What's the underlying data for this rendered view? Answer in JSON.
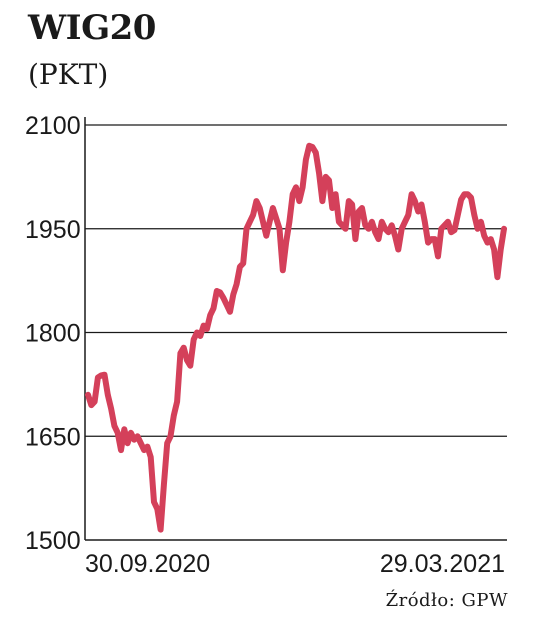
{
  "header": {
    "title": "WIG20",
    "unit": "(PKT)"
  },
  "source": "Źródło: GPW",
  "colors": {
    "line": "#d4405a",
    "grid": "#1a1a1a",
    "text": "#1a1a1a"
  },
  "chart_data": {
    "type": "line",
    "title": "WIG20",
    "subtitle": "(PKT)",
    "xlabel": "",
    "ylabel": "",
    "ylim": [
      1500,
      2100
    ],
    "yticks": [
      1500,
      1650,
      1800,
      1950,
      2100
    ],
    "ytick_labels": [
      "1500",
      "1650",
      "1800",
      "1950",
      "2100"
    ],
    "xtick_labels": [
      "30.09.2020",
      "29.03.2021"
    ],
    "grid": true,
    "series": [
      {
        "values": [
          1710,
          1695,
          1700,
          1735,
          1738,
          1739,
          1710,
          1690,
          1665,
          1655,
          1630,
          1660,
          1640,
          1655,
          1645,
          1650,
          1640,
          1630,
          1635,
          1620,
          1555,
          1545,
          1515,
          1580,
          1640,
          1650,
          1680,
          1700,
          1770,
          1778,
          1760,
          1752,
          1790,
          1800,
          1795,
          1810,
          1805,
          1825,
          1835,
          1860,
          1858,
          1850,
          1840,
          1830,
          1855,
          1870,
          1895,
          1900,
          1950,
          1960,
          1970,
          1990,
          1980,
          1960,
          1940,
          1960,
          1980,
          1965,
          1950,
          1890,
          1930,
          1960,
          2000,
          2010,
          1990,
          2010,
          2050,
          2070,
          2068,
          2060,
          2030,
          1990,
          2025,
          2020,
          1980,
          2000,
          1960,
          1955,
          1950,
          1990,
          1985,
          1935,
          1975,
          1980,
          1955,
          1950,
          1960,
          1945,
          1935,
          1960,
          1950,
          1945,
          1955,
          1940,
          1920,
          1950,
          1960,
          1970,
          2000,
          1990,
          1975,
          1985,
          1960,
          1930,
          1935,
          1935,
          1910,
          1950,
          1955,
          1960,
          1945,
          1948,
          1970,
          1992,
          2000,
          2000,
          1995,
          1970,
          1950,
          1960,
          1940,
          1930,
          1935,
          1920,
          1880,
          1920,
          1950
        ]
      }
    ]
  }
}
